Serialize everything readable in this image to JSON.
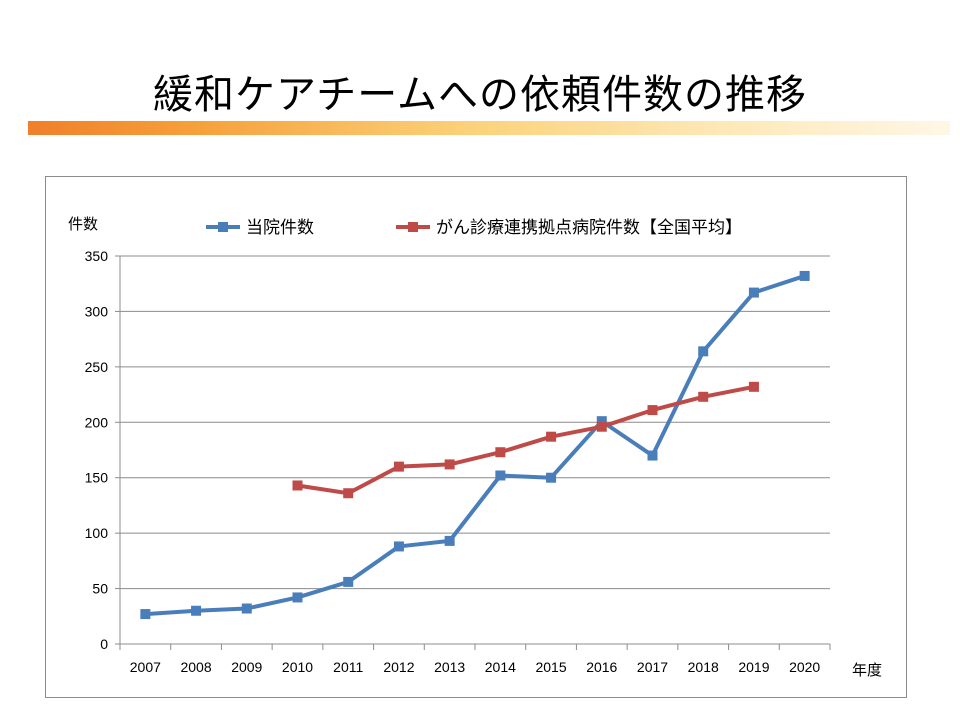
{
  "title": "緩和ケアチームへの依頼件数の推移",
  "chart_data": {
    "type": "line",
    "title": "",
    "ylabel": "件数",
    "xlabel": "年度",
    "ylim": [
      0,
      350
    ],
    "yticks": [
      0,
      50,
      100,
      150,
      200,
      250,
      300,
      350
    ],
    "categories": [
      "2007",
      "2008",
      "2009",
      "2010",
      "2011",
      "2012",
      "2013",
      "2014",
      "2015",
      "2016",
      "2017",
      "2018",
      "2019",
      "2020"
    ],
    "grid": true,
    "legend_position": "top",
    "series": [
      {
        "name": "当院件数",
        "color": "#4a7ebb",
        "values": [
          27,
          30,
          32,
          42,
          56,
          88,
          93,
          152,
          150,
          201,
          170,
          264,
          317,
          332
        ]
      },
      {
        "name": "がん診療連携拠点病院件数【全国平均】",
        "color": "#be4b48",
        "values": [
          null,
          null,
          null,
          143,
          136,
          160,
          162,
          173,
          187,
          196,
          211,
          223,
          232,
          null
        ]
      }
    ]
  }
}
